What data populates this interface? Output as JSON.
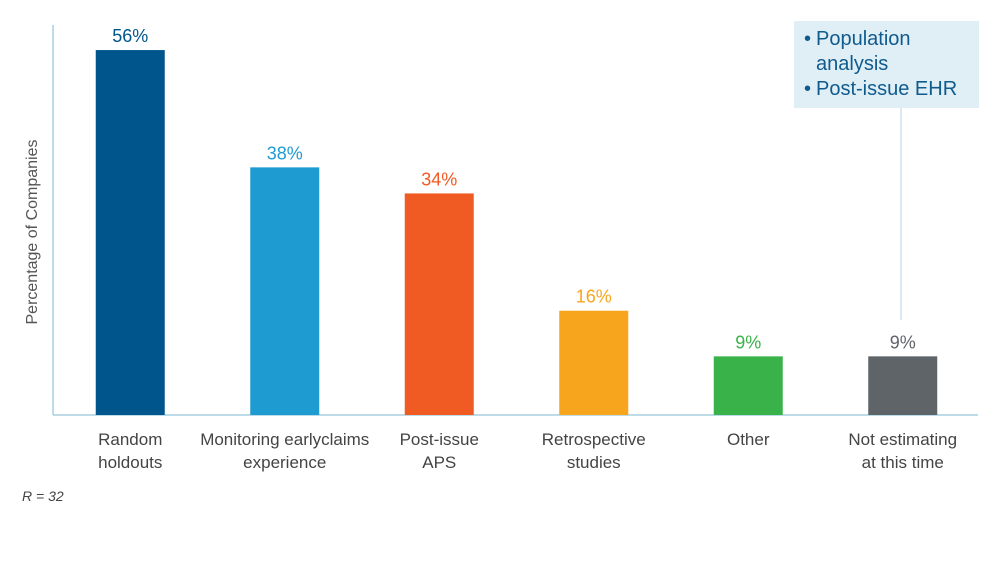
{
  "chart_data": {
    "type": "bar",
    "ylabel": "Percentage of Companies",
    "ylim": [
      0,
      60
    ],
    "categories": [
      [
        "Random",
        "holdouts"
      ],
      [
        "Monitoring earlyclaims",
        "experience"
      ],
      [
        "Post-issue",
        "APS"
      ],
      [
        "Retrospective",
        "studies"
      ],
      [
        "Other"
      ],
      [
        "Not estimating",
        "at this time"
      ]
    ],
    "values": [
      56,
      38,
      34,
      16,
      9,
      9
    ],
    "data_labels": [
      "56%",
      "38%",
      "34%",
      "16%",
      "9%",
      "9%"
    ],
    "colors": [
      "#00568c",
      "#1e9bd0",
      "#f05a23",
      "#f7a51c",
      "#39b24a",
      "#5f6468"
    ],
    "label_colors": [
      "#00568c",
      "#1e9bd0",
      "#f05a23",
      "#f7a51c",
      "#39b24a",
      "#5f6468"
    ],
    "grid": false
  },
  "callout": {
    "items": [
      "Population analysis",
      "Post-issue EHR"
    ]
  },
  "note": "R = 32"
}
